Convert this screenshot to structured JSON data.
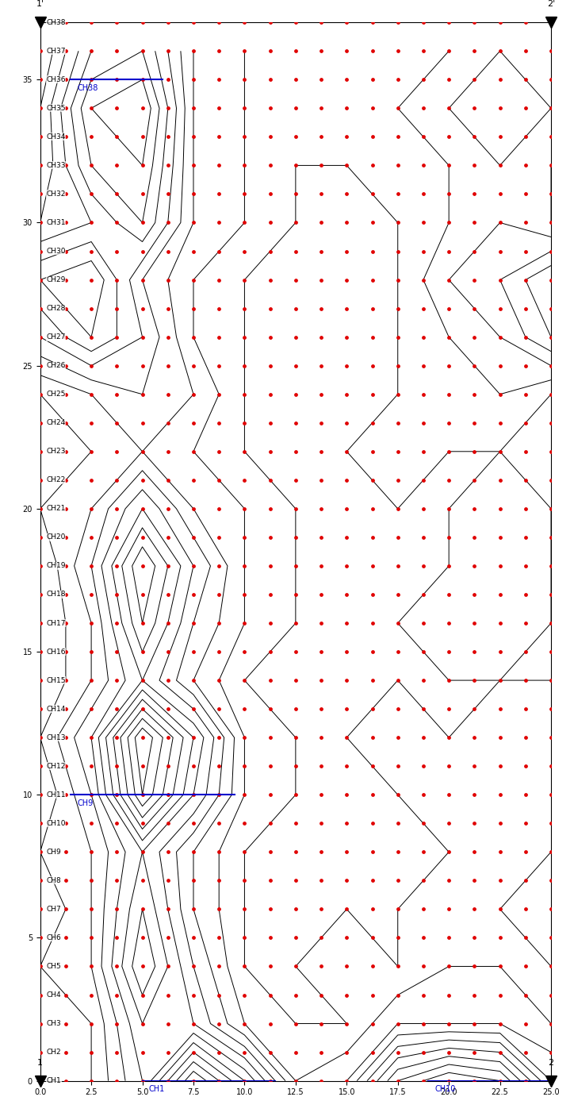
{
  "chart_data": {
    "type": "contour",
    "xlim": [
      0,
      25
    ],
    "xticks": [
      {
        "value": 0,
        "label": "0.0"
      },
      {
        "value": 2.5,
        "label": "2.5"
      },
      {
        "value": 5,
        "label": "5.0"
      },
      {
        "value": 7.5,
        "label": "7.5"
      },
      {
        "value": 10,
        "label": "10.0"
      },
      {
        "value": 12.5,
        "label": "12.5"
      },
      {
        "value": 15,
        "label": "15.0"
      },
      {
        "value": 17.5,
        "label": "17.5"
      },
      {
        "value": 20,
        "label": "20.0"
      },
      {
        "value": 22.5,
        "label": "22.5"
      },
      {
        "value": 25,
        "label": "25.0"
      }
    ],
    "ylim": [
      0,
      37
    ],
    "yticks": [
      0,
      5,
      10,
      15,
      20,
      25,
      30,
      35
    ],
    "color": "#000000",
    "x": [
      0,
      2.5,
      5,
      7.5,
      10,
      12.5,
      15,
      17.5,
      20,
      22.5,
      25
    ],
    "y": [
      0,
      2,
      4,
      6,
      8,
      10,
      12,
      14,
      16,
      18,
      20,
      22,
      24,
      26,
      28,
      30,
      32,
      34,
      36
    ],
    "cells": [
      [
        2,
        3,
        6,
        12,
        8,
        3,
        4,
        9,
        11,
        10,
        5
      ],
      [
        2,
        3,
        7,
        6,
        3,
        2,
        2,
        4,
        4,
        4,
        3
      ],
      [
        3,
        4,
        9,
        5,
        2,
        2,
        3,
        2,
        3,
        3,
        2
      ],
      [
        2,
        4,
        8,
        4,
        2,
        1,
        2,
        2,
        3,
        2,
        2
      ],
      [
        3,
        4,
        7,
        4,
        2,
        2,
        1,
        2,
        2,
        3,
        2
      ],
      [
        2,
        5,
        12,
        7,
        3,
        2,
        2,
        2,
        3,
        2,
        3
      ],
      [
        3,
        6,
        13,
        8,
        3,
        2,
        2,
        3,
        2,
        3,
        3
      ],
      [
        2,
        4,
        7,
        4,
        2,
        2,
        2,
        2,
        2,
        2,
        2
      ],
      [
        2,
        4,
        9,
        5,
        3,
        2,
        2,
        2,
        3,
        3,
        2
      ],
      [
        2,
        5,
        10,
        6,
        3,
        2,
        2,
        2,
        2,
        3,
        2
      ],
      [
        3,
        4,
        7,
        4,
        3,
        2,
        2,
        2,
        2,
        3,
        2
      ],
      [
        2,
        3,
        4,
        3,
        2,
        2,
        2,
        3,
        2,
        2,
        2
      ],
      [
        3,
        4,
        5,
        4,
        2,
        2,
        2,
        2,
        3,
        3,
        2
      ],
      [
        6,
        8,
        6,
        3,
        2,
        2,
        2,
        2,
        3,
        4,
        6
      ],
      [
        8,
        9,
        5,
        3,
        2,
        2,
        2,
        2,
        4,
        5,
        7
      ],
      [
        5,
        6,
        8,
        4,
        3,
        2,
        2,
        2,
        3,
        4,
        3
      ],
      [
        4,
        8,
        9,
        4,
        3,
        2,
        2,
        3,
        3,
        4,
        3
      ],
      [
        4,
        9,
        10,
        4,
        3,
        3,
        3,
        3,
        4,
        5,
        4
      ],
      [
        3,
        7,
        8,
        4,
        3,
        2,
        3,
        3,
        3,
        4,
        3
      ]
    ],
    "levels": [
      1,
      2,
      3,
      4,
      5,
      6,
      7,
      8,
      9,
      10,
      11,
      12,
      13
    ],
    "stations": {
      "color": "#e00000",
      "x": [
        0,
        1.25,
        2.5,
        3.75,
        5,
        6.25,
        7.5,
        8.75,
        10,
        11.25,
        12.5,
        13.75,
        15,
        16.25,
        17.5,
        18.75,
        20,
        21.25,
        22.5,
        23.75,
        25
      ],
      "y": [
        0,
        1,
        2,
        3,
        4,
        5,
        6,
        7,
        8,
        9,
        10,
        11,
        12,
        13,
        14,
        15,
        16,
        17,
        18,
        19,
        20,
        21,
        22,
        23,
        24,
        25,
        26,
        27,
        28,
        29,
        30,
        31,
        32,
        33,
        34,
        35,
        36,
        37
      ]
    },
    "channels": [
      "CH1",
      "CH2",
      "CH3",
      "CH4",
      "CH5",
      "CH6",
      "CH7",
      "CH8",
      "CH9",
      "CH10",
      "CH11",
      "CH12",
      "CH13",
      "CH14",
      "CH15",
      "CH16",
      "CH17",
      "CH18",
      "CH19",
      "CH20",
      "CH21",
      "CH22",
      "CH23",
      "CH24",
      "CH25",
      "CH26",
      "CH27",
      "CH28",
      "CH29",
      "CH30",
      "CH31",
      "CH32",
      "CH33",
      "CH34",
      "CH35",
      "CH36",
      "CH37",
      "CH38"
    ],
    "segments": [
      {
        "label": "CH38",
        "x": [
          1.5,
          6
        ],
        "y": 35,
        "color": "#0000cc"
      },
      {
        "label": "CH9",
        "x": [
          1.5,
          9.5
        ],
        "y": 10,
        "color": "#0000cc"
      },
      {
        "label": "CH1",
        "x": [
          5,
          11.5
        ],
        "y": 0,
        "color": "#0000cc"
      },
      {
        "label": "CH10",
        "x": [
          19,
          25
        ],
        "y": 0,
        "color": "#0000cc"
      }
    ],
    "endpoints": [
      {
        "label": "1",
        "x": 0,
        "y": 0
      },
      {
        "label": "2",
        "x": 25,
        "y": 0
      },
      {
        "label": "1'",
        "x": 0,
        "y": 37
      },
      {
        "label": "2'",
        "x": 25,
        "y": 37
      }
    ]
  }
}
